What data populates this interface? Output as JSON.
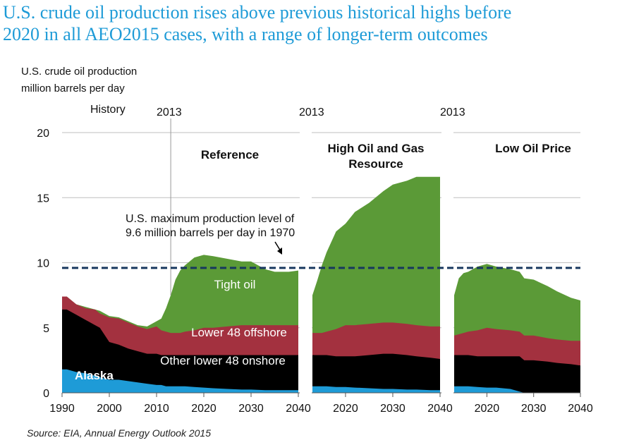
{
  "title_line1": "U.S. crude oil production rises above previous historical highs before",
  "title_line2": "2020 in all AEO2015 cases, with a range of longer-term outcomes",
  "ylabel_line1": "U.S. crude oil production",
  "ylabel_line2": "million barrels per day",
  "source": "Source:  EIA, Annual Energy Outlook 2015",
  "colors": {
    "alaska": "#1e9bd7",
    "other_onshore": "#000000",
    "offshore": "#a3313f",
    "tight_oil": "#5b9a37",
    "max_line": "#17375e",
    "grid": "#bfbfbf"
  },
  "chart_data": {
    "type": "area",
    "stacked": true,
    "ylim": [
      0,
      20
    ],
    "yticks": [
      "0",
      "5",
      "10",
      "15",
      "20"
    ],
    "grid": true,
    "series_order": [
      "Alaska",
      "Other lower 48 onshore",
      "Lower 48 offshore",
      "Tight oil"
    ],
    "series_labels": {
      "alaska": "Alaska",
      "other_onshore": "Other lower 48 onshore",
      "offshore": "Lower 48 offshore",
      "tight_oil": "Tight oil"
    },
    "max_production": {
      "value": 9.6,
      "label_line1": "U.S. maximum production level of",
      "label_line2": "9.6 million barrels per day in 1970"
    },
    "panels": [
      {
        "name": "Reference",
        "xlim": [
          1990,
          2040
        ],
        "xticks": [
          "1990",
          "2000",
          "2010",
          "2020",
          "2030",
          "2040"
        ],
        "history_label": "History",
        "divider_label": "2013",
        "x": [
          1990,
          1991,
          1993,
          1995,
          1997,
          1998,
          2000,
          2002,
          2004,
          2006,
          2008,
          2010,
          2011,
          2012,
          2013,
          2014,
          2015,
          2016,
          2018,
          2020,
          2022,
          2025,
          2028,
          2030,
          2033,
          2035,
          2038,
          2040
        ],
        "alaska": [
          1.8,
          1.8,
          1.6,
          1.5,
          1.3,
          1.2,
          1.0,
          1.0,
          0.9,
          0.8,
          0.7,
          0.6,
          0.6,
          0.5,
          0.5,
          0.5,
          0.5,
          0.5,
          0.45,
          0.4,
          0.35,
          0.3,
          0.25,
          0.25,
          0.2,
          0.2,
          0.2,
          0.2
        ],
        "other_onshore": [
          6.4,
          6.4,
          6.0,
          5.6,
          5.2,
          5.0,
          3.9,
          3.7,
          3.4,
          3.2,
          3.0,
          3.0,
          2.9,
          2.9,
          2.9,
          2.9,
          2.9,
          2.9,
          2.9,
          2.9,
          2.9,
          2.9,
          2.9,
          2.9,
          2.9,
          2.9,
          2.9,
          2.9
        ],
        "offshore_top": [
          7.4,
          7.4,
          6.8,
          6.5,
          6.4,
          6.1,
          5.8,
          5.7,
          5.4,
          5.1,
          4.9,
          5.1,
          4.8,
          4.7,
          4.6,
          4.6,
          4.6,
          4.7,
          4.8,
          5.0,
          5.0,
          5.1,
          5.2,
          5.2,
          5.2,
          5.2,
          5.2,
          5.2
        ],
        "total": [
          7.4,
          7.4,
          6.8,
          6.6,
          6.4,
          6.3,
          5.9,
          5.8,
          5.5,
          5.2,
          5.1,
          5.5,
          5.7,
          6.5,
          7.5,
          8.7,
          9.4,
          9.8,
          10.4,
          10.6,
          10.5,
          10.3,
          10.1,
          10.1,
          9.5,
          9.3,
          9.3,
          9.4
        ],
        "title": "Reference"
      },
      {
        "name": "High Oil and Gas Resource",
        "xlim": [
          2013,
          2040
        ],
        "xticks": [
          "2020",
          "2030",
          "2040"
        ],
        "divider_label": "2013",
        "x": [
          2013,
          2014,
          2015,
          2016,
          2018,
          2020,
          2022,
          2025,
          2028,
          2030,
          2033,
          2035,
          2038,
          2040
        ],
        "alaska": [
          0.5,
          0.5,
          0.5,
          0.5,
          0.45,
          0.45,
          0.4,
          0.35,
          0.3,
          0.3,
          0.25,
          0.25,
          0.2,
          0.2
        ],
        "other_onshore": [
          2.9,
          2.9,
          2.9,
          2.9,
          2.8,
          2.8,
          2.8,
          2.9,
          3.0,
          3.0,
          2.9,
          2.8,
          2.7,
          2.6
        ],
        "offshore_top": [
          4.6,
          4.6,
          4.6,
          4.7,
          4.9,
          5.2,
          5.2,
          5.3,
          5.4,
          5.4,
          5.3,
          5.2,
          5.1,
          5.1
        ],
        "total": [
          7.5,
          8.6,
          9.8,
          10.8,
          12.4,
          13.0,
          13.9,
          14.6,
          15.5,
          16.0,
          16.3,
          16.6,
          16.6,
          16.6
        ],
        "title_line1": "High Oil and Gas",
        "title_line2": "Resource"
      },
      {
        "name": "Low Oil Price",
        "xlim": [
          2013,
          2040
        ],
        "xticks": [
          "2020",
          "2030",
          "2040"
        ],
        "divider_label": "2013",
        "x": [
          2013,
          2014,
          2015,
          2016,
          2018,
          2020,
          2022,
          2025,
          2027,
          2028,
          2030,
          2033,
          2035,
          2038,
          2040
        ],
        "alaska": [
          0.5,
          0.5,
          0.5,
          0.5,
          0.45,
          0.4,
          0.4,
          0.3,
          0.1,
          0.0,
          0.0,
          0.0,
          0.0,
          0.0,
          0.0
        ],
        "other_onshore": [
          2.9,
          2.9,
          2.9,
          2.9,
          2.8,
          2.8,
          2.8,
          2.8,
          2.8,
          2.5,
          2.5,
          2.4,
          2.3,
          2.2,
          2.1
        ],
        "offshore_top": [
          4.4,
          4.5,
          4.6,
          4.7,
          4.8,
          5.0,
          4.9,
          4.8,
          4.7,
          4.4,
          4.4,
          4.2,
          4.1,
          4.0,
          4.0
        ],
        "total": [
          7.5,
          8.8,
          9.2,
          9.3,
          9.7,
          9.9,
          9.7,
          9.5,
          9.3,
          8.8,
          8.7,
          8.2,
          7.8,
          7.3,
          7.1
        ],
        "title": "Low Oil Price"
      }
    ]
  }
}
